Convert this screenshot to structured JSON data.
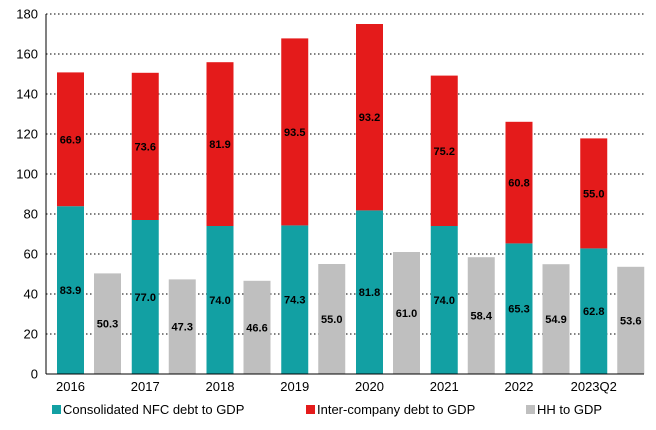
{
  "chart_data": {
    "type": "bar",
    "stacked_and_grouped": true,
    "categories": [
      "2016",
      "2017",
      "2018",
      "2019",
      "2020",
      "2021",
      "2022",
      "2023Q2"
    ],
    "ylim": [
      0,
      180
    ],
    "yticks": [
      0,
      20,
      40,
      60,
      80,
      100,
      120,
      140,
      160,
      180
    ],
    "grid": "horizontal-dotted",
    "legend_position": "bottom",
    "series": [
      {
        "name": "Consolidated NFC debt to GDP",
        "color": "#12a0a3",
        "stack": "NFC",
        "values": [
          83.9,
          77.0,
          74.0,
          74.3,
          81.8,
          74.0,
          65.3,
          62.8
        ],
        "labels": [
          "83.9",
          "77.0",
          "74.0",
          "74.3",
          "81.8",
          "74.0",
          "65.3",
          "62.8"
        ]
      },
      {
        "name": "Inter-company debt to GDP",
        "color": "#e41b1b",
        "stack": "NFC",
        "values": [
          66.9,
          73.6,
          81.9,
          93.5,
          93.2,
          75.2,
          60.8,
          55.0
        ],
        "labels": [
          "66.9",
          "73.6",
          "81.9",
          "93.5",
          "93.2",
          "75.2",
          "60.8",
          "55.0"
        ]
      },
      {
        "name": "HH to GDP",
        "color": "#bfbfbf",
        "stack": "HH",
        "values": [
          50.3,
          47.3,
          46.6,
          55.0,
          61.0,
          58.4,
          54.9,
          53.6
        ],
        "labels": [
          "50.3",
          "47.3",
          "46.6",
          "55.0",
          "61.0",
          "58.4",
          "54.9",
          "53.6"
        ]
      }
    ]
  }
}
